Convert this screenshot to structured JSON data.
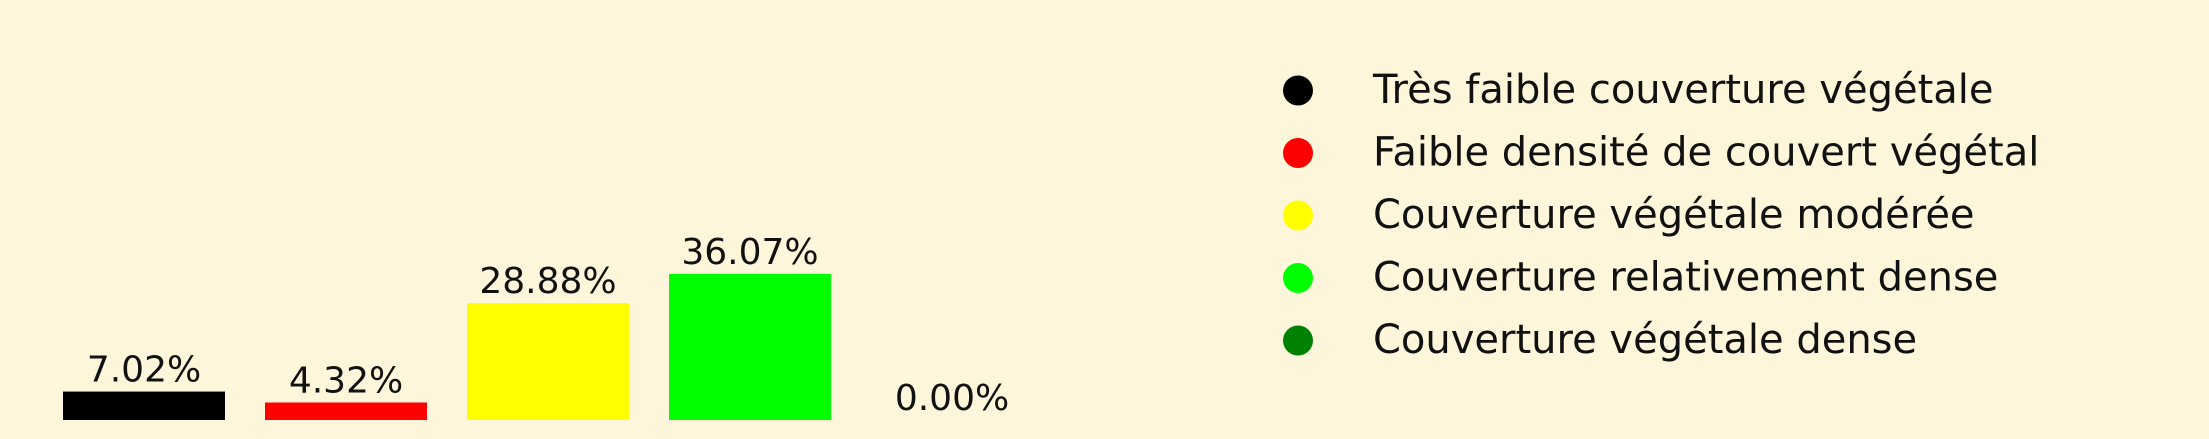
{
  "chart_data": {
    "type": "bar",
    "categories": [
      "Très faible couverture végétale",
      "Faible densité de couvert végétal",
      "Couverture végétale modérée",
      "Couverture relativement dense",
      "Couverture végétale dense"
    ],
    "values": [
      7.02,
      4.32,
      28.88,
      36.07,
      0.0
    ],
    "data_labels": [
      "7.02%",
      "4.32%",
      "28.88%",
      "36.07%",
      "0.00%"
    ],
    "colors": [
      "#000000",
      "#ff0000",
      "#ffff00",
      "#00ff00",
      "#008000"
    ],
    "background": "#fdf6da",
    "legend_position": "right",
    "legend_marker": "circle",
    "grid": false,
    "axes_visible": false
  }
}
